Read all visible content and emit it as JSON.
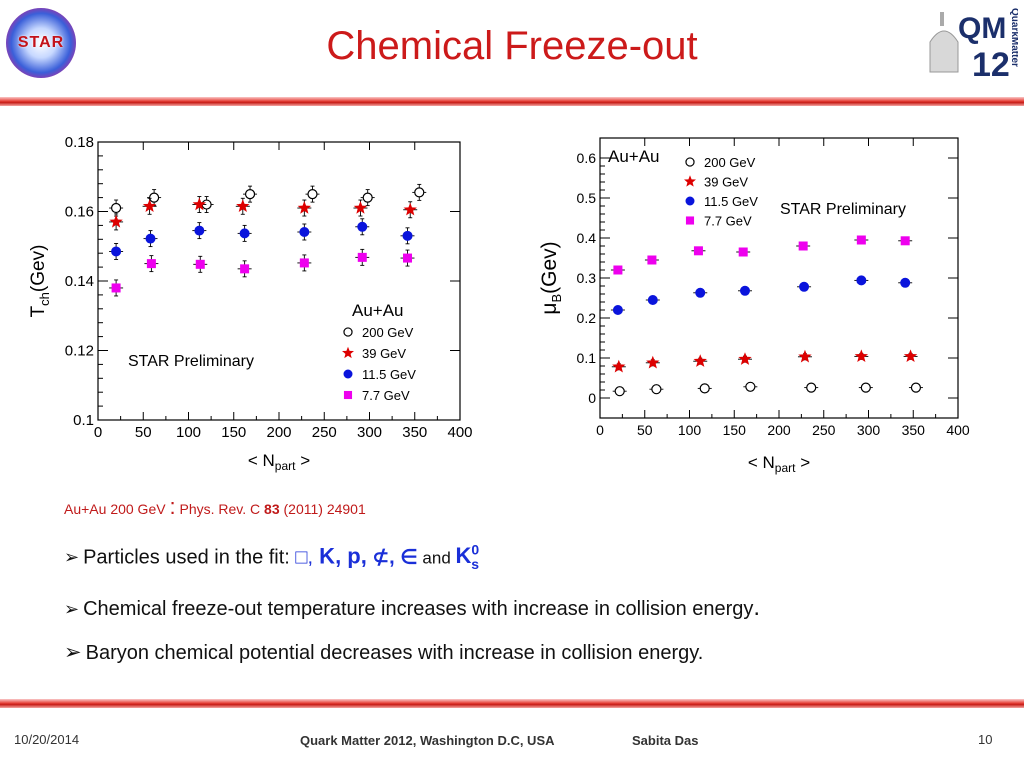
{
  "header": {
    "title": "Chemical Freeze-out",
    "logo_left_text": "STAR",
    "logo_right_text": "QM",
    "logo_right_year": "12",
    "logo_right_side": "QuarkMatter"
  },
  "colors": {
    "title": "#cc1a1a",
    "rule": "#e8443c",
    "blue_text": "#1a2fd8",
    "s200": "#000000",
    "s39": "#dd0000",
    "s115": "#0a14dc",
    "s77": "#ee00ee"
  },
  "chart_data": [
    {
      "type": "scatter",
      "xlabel": "< N",
      "xlabel_sub": "part",
      "xlabel_suffix": " >",
      "ylabel": "T",
      "ylabel_sub": "ch",
      "ylabel_suffix": "(Gev)",
      "xlim": [
        0,
        400
      ],
      "ylim": [
        0.1,
        0.18
      ],
      "xticks": [
        "0",
        "50",
        "100",
        "150",
        "200",
        "250",
        "300",
        "350",
        "400"
      ],
      "yticks": [
        "0.1",
        "0.12",
        "0.14",
        "0.16",
        "0.18"
      ],
      "annotation": "STAR Preliminary",
      "legend_title": "Au+Au",
      "legend_position": "bottom-right",
      "series": [
        {
          "name": "200 GeV",
          "marker": "open-circle",
          "color": "#000000",
          "x": [
            20,
            62,
            120,
            168,
            237,
            298,
            355
          ],
          "y": [
            0.161,
            0.164,
            0.162,
            0.165,
            0.165,
            0.164,
            0.1655
          ]
        },
        {
          "name": "39 GeV",
          "marker": "star",
          "color": "#dd0000",
          "x": [
            20,
            57,
            112,
            160,
            228,
            290,
            345
          ],
          "y": [
            0.157,
            0.1615,
            0.162,
            0.1615,
            0.161,
            0.161,
            0.1605
          ]
        },
        {
          "name": "11.5 GeV",
          "marker": "filled-circle",
          "color": "#0a14dc",
          "x": [
            20,
            58,
            112,
            162,
            228,
            292,
            342
          ],
          "y": [
            0.1485,
            0.1522,
            0.1545,
            0.1537,
            0.1541,
            0.1556,
            0.153
          ]
        },
        {
          "name": "7.7 GeV",
          "marker": "filled-square",
          "color": "#ee00ee",
          "x": [
            20,
            59,
            113,
            162,
            228,
            292,
            342
          ],
          "y": [
            0.138,
            0.145,
            0.1448,
            0.1435,
            0.1452,
            0.1468,
            0.1466
          ]
        }
      ]
    },
    {
      "type": "scatter",
      "xlabel": "< N",
      "xlabel_sub": "part",
      "xlabel_suffix": " >",
      "ylabel": "μ",
      "ylabel_sub": "B",
      "ylabel_suffix": "(Gev)",
      "xlim": [
        0,
        400
      ],
      "ylim": [
        -0.05,
        0.65
      ],
      "xticks": [
        "0",
        "50",
        "100",
        "150",
        "200",
        "250",
        "300",
        "350",
        "400"
      ],
      "yticks": [
        "0",
        "0.1",
        "0.2",
        "0.3",
        "0.4",
        "0.5",
        "0.6"
      ],
      "ytick_values": [
        0,
        0.1,
        0.2,
        0.3,
        0.4,
        0.5,
        0.6
      ],
      "annotation": "STAR Preliminary",
      "legend_title": "Au+Au",
      "legend_position": "top-left",
      "series": [
        {
          "name": "200 GeV",
          "marker": "open-circle",
          "color": "#000000",
          "x": [
            22,
            63,
            117,
            168,
            236,
            297,
            353
          ],
          "y": [
            0.017,
            0.022,
            0.024,
            0.028,
            0.026,
            0.026,
            0.026
          ]
        },
        {
          "name": "39 GeV",
          "marker": "star",
          "color": "#dd0000",
          "x": [
            21,
            59,
            112,
            162,
            229,
            292,
            347
          ],
          "y": [
            0.078,
            0.088,
            0.092,
            0.097,
            0.103,
            0.104,
            0.104
          ]
        },
        {
          "name": "11.5 GeV",
          "marker": "filled-circle",
          "color": "#0a14dc",
          "x": [
            20,
            59,
            112,
            162,
            228,
            292,
            341
          ],
          "y": [
            0.22,
            0.245,
            0.263,
            0.268,
            0.278,
            0.294,
            0.288
          ]
        },
        {
          "name": "7.7 GeV",
          "marker": "filled-square",
          "color": "#ee00ee",
          "x": [
            20,
            58,
            110,
            160,
            227,
            292,
            341
          ],
          "y": [
            0.32,
            0.345,
            0.368,
            0.365,
            0.38,
            0.395,
            0.393
          ]
        }
      ]
    }
  ],
  "citation": {
    "part1": "Au+Au 200 GeV ",
    "colon": ":",
    "part2": " Phys. Rev. C ",
    "volume": "83",
    "part3": " (2011) 24901"
  },
  "bullets": {
    "b1_prefix": "Particles used in the fit: ",
    "b1_box": "□,",
    "b1_kp": " K, p,",
    "b1_sym": " ⊄, ∈",
    "b1_and": " and ",
    "b1_k0": "K",
    "b1_k0_sup": "0",
    "b1_k0_sub": "s",
    "b2": "Chemical freeze-out temperature increases with increase in collision energy",
    "b2_end": ".",
    "b3": "Baryon chemical potential decreases with increase in collision energy."
  },
  "footer": {
    "date": "10/20/2014",
    "conference": "Quark Matter 2012, Washington D.C, USA",
    "author": "Sabita Das",
    "page": "10"
  }
}
